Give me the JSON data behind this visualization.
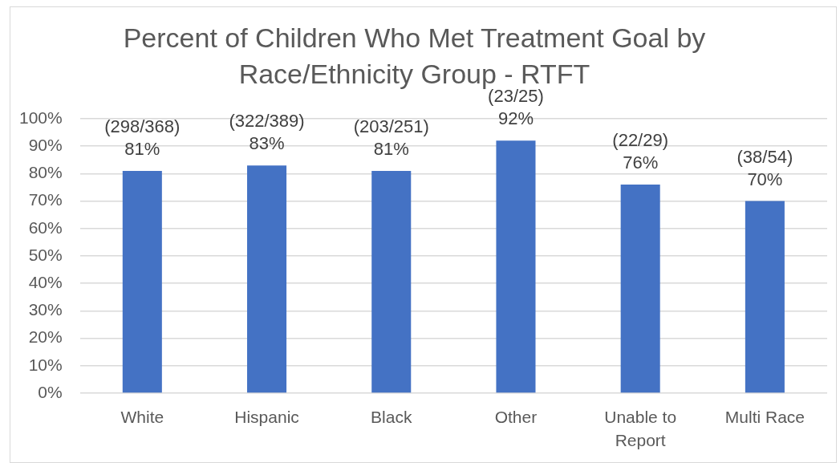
{
  "chart_data": {
    "type": "bar",
    "title": "Percent of Children Who Met Treatment Goal by Race/Ethnicity Group - RTFT",
    "categories": [
      "White",
      "Hispanic",
      "Black",
      "Other",
      "Unable to Report",
      "Multi Race"
    ],
    "values": [
      81,
      83,
      81,
      92,
      76,
      70
    ],
    "color": "#4472c4",
    "value_labels": [
      "(298/368)\n81%",
      "(322/389)\n83%",
      "(203/251)\n81%",
      "(23/25)\n92%",
      "(22/29)\n76%",
      "(38/54)\n70%"
    ],
    "ylim": [
      0,
      100
    ],
    "yticks": [
      {
        "value": 0,
        "label": "0%"
      },
      {
        "value": 10,
        "label": "10%"
      },
      {
        "value": 20,
        "label": "20%"
      },
      {
        "value": 30,
        "label": "30%"
      },
      {
        "value": 40,
        "label": "40%"
      },
      {
        "value": 50,
        "label": "50%"
      },
      {
        "value": 60,
        "label": "60%"
      },
      {
        "value": 70,
        "label": "70%"
      },
      {
        "value": 80,
        "label": "80%"
      },
      {
        "value": 90,
        "label": "90%"
      },
      {
        "value": 100,
        "label": "100%"
      }
    ],
    "grid": "y"
  }
}
